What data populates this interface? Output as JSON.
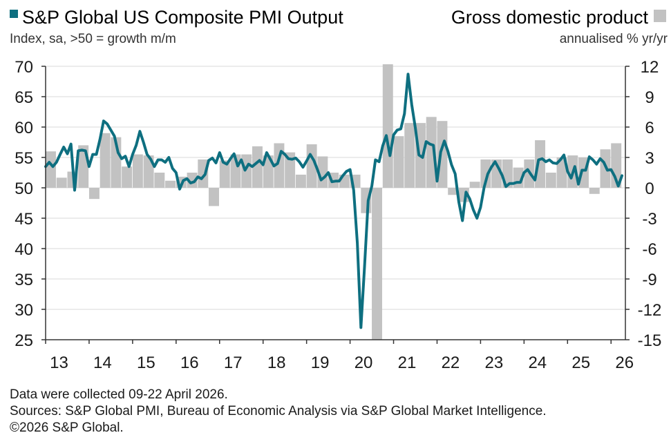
{
  "chart_data": {
    "type": "line",
    "legend": {
      "left_series": "S&P Global US Composite PMI Output",
      "left_unit": "Index, sa, >50 = growth m/m",
      "right_series": "Gross domestic product",
      "right_unit": "annualised % yr/yr"
    },
    "colors": {
      "pmi": "#0e6f80",
      "gdp": "#c2c2c2",
      "axis": "#333333"
    },
    "x_ticks": [
      "13",
      "14",
      "15",
      "16",
      "17",
      "18",
      "19",
      "20",
      "21",
      "22",
      "23",
      "24",
      "25",
      "26"
    ],
    "y_left": {
      "min": 25,
      "max": 70,
      "ticks": [
        "70",
        "65",
        "60",
        "55",
        "50",
        "45",
        "40",
        "35",
        "30",
        "25"
      ]
    },
    "y_right": {
      "min": -15,
      "max": 12,
      "ticks": [
        "12",
        "9",
        "6",
        "3",
        "0",
        "-3",
        "-6",
        "-9",
        "-12",
        "-15"
      ]
    },
    "series": [
      {
        "name": "S&P Global US Composite PMI Output",
        "axis": "left",
        "x": [
          2013.0,
          2013.083,
          2013.167,
          2013.25,
          2013.333,
          2013.417,
          2013.5,
          2013.583,
          2013.667,
          2013.75,
          2013.833,
          2013.917,
          2014.0,
          2014.083,
          2014.167,
          2014.25,
          2014.333,
          2014.417,
          2014.5,
          2014.583,
          2014.667,
          2014.75,
          2014.833,
          2014.917,
          2015.0,
          2015.083,
          2015.167,
          2015.25,
          2015.333,
          2015.417,
          2015.5,
          2015.583,
          2015.667,
          2015.75,
          2015.833,
          2015.917,
          2016.0,
          2016.083,
          2016.167,
          2016.25,
          2016.333,
          2016.417,
          2016.5,
          2016.583,
          2016.667,
          2016.75,
          2016.833,
          2016.917,
          2017.0,
          2017.083,
          2017.167,
          2017.25,
          2017.333,
          2017.417,
          2017.5,
          2017.583,
          2017.667,
          2017.75,
          2017.833,
          2017.917,
          2018.0,
          2018.083,
          2018.167,
          2018.25,
          2018.333,
          2018.417,
          2018.5,
          2018.583,
          2018.667,
          2018.75,
          2018.833,
          2018.917,
          2019.0,
          2019.083,
          2019.167,
          2019.25,
          2019.333,
          2019.417,
          2019.5,
          2019.583,
          2019.667,
          2019.75,
          2019.833,
          2019.917,
          2020.0,
          2020.083,
          2020.167,
          2020.25,
          2020.333,
          2020.417,
          2020.5,
          2020.583,
          2020.667,
          2020.75,
          2020.833,
          2020.917,
          2021.0,
          2021.083,
          2021.167,
          2021.25,
          2021.333,
          2021.417,
          2021.5,
          2021.583,
          2021.667,
          2021.75,
          2021.833,
          2021.917,
          2022.0,
          2022.083,
          2022.167,
          2022.25,
          2022.333,
          2022.417,
          2022.5,
          2022.583,
          2022.667,
          2022.75,
          2022.833,
          2022.917,
          2023.0,
          2023.083,
          2023.167,
          2023.25,
          2023.333,
          2023.417,
          2023.5,
          2023.583,
          2023.667,
          2023.75,
          2023.833,
          2023.917,
          2024.0,
          2024.083,
          2024.167,
          2024.25,
          2024.333,
          2024.417,
          2024.5,
          2024.583,
          2024.667,
          2024.75,
          2024.833,
          2024.917,
          2025.0,
          2025.083,
          2025.167,
          2025.25,
          2025.333,
          2025.417,
          2025.5,
          2025.583,
          2025.667,
          2025.75,
          2025.833,
          2025.917,
          2026.0,
          2026.083,
          2026.167,
          2026.25
        ],
        "values": [
          53.5,
          54.2,
          53.5,
          54.2,
          55.5,
          56.7,
          55.6,
          57.2,
          49.6,
          56.1,
          56.2,
          56.1,
          53.5,
          55.5,
          55.5,
          58.0,
          61.0,
          60.5,
          59.5,
          58.5,
          55.8,
          54.8,
          55.2,
          53.5,
          55.5,
          57.0,
          59.3,
          57.5,
          55.5,
          54.7,
          53.5,
          54.6,
          54.6,
          54.2,
          55.0,
          53.2,
          52.5,
          49.8,
          51.2,
          51.5,
          50.8,
          51.0,
          51.8,
          51.5,
          52.2,
          54.5,
          54.9,
          54.1,
          55.8,
          54.2,
          53.9,
          54.8,
          55.6,
          53.6,
          54.6,
          52.9,
          53.9,
          53.5,
          54.0,
          54.5,
          53.8,
          55.8,
          54.7,
          53.6,
          54.0,
          56.0,
          55.5,
          54.8,
          54.7,
          54.9,
          54.3,
          53.4,
          54.4,
          55.5,
          54.5,
          53.0,
          51.3,
          51.8,
          52.5,
          51.0,
          51.1,
          51.1,
          52.0,
          52.7,
          53.0,
          49.6,
          40.9,
          27.0,
          37.0,
          47.9,
          50.3,
          54.6,
          54.3,
          56.9,
          58.6,
          55.3,
          58.7,
          59.5,
          59.7,
          62.2,
          68.7,
          63.7,
          59.9,
          55.4,
          55.0,
          57.6,
          57.2,
          57.0,
          51.1,
          55.9,
          57.7,
          56.0,
          53.8,
          52.3,
          47.7,
          44.6,
          49.3,
          48.2,
          46.4,
          45.0,
          46.8,
          50.1,
          52.3,
          53.4,
          54.3,
          53.2,
          52.0,
          50.2,
          50.7,
          50.7,
          50.9,
          50.9,
          52.5,
          53.0,
          52.1,
          51.3,
          54.6,
          54.8,
          54.3,
          54.6,
          54.1,
          54.0,
          54.6,
          55.4,
          52.7,
          51.6,
          53.5,
          50.6,
          52.9,
          52.9,
          55.1,
          54.6,
          53.9,
          54.8,
          54.2,
          52.9,
          53.0,
          51.9,
          50.3,
          52.0
        ]
      },
      {
        "name": "Gross domestic product",
        "axis": "right",
        "type": "bar",
        "x": [
          2013.0,
          2013.25,
          2013.5,
          2013.75,
          2014.0,
          2014.25,
          2014.5,
          2014.75,
          2015.0,
          2015.25,
          2015.5,
          2015.75,
          2016.0,
          2016.25,
          2016.5,
          2016.75,
          2017.0,
          2017.25,
          2017.5,
          2017.75,
          2018.0,
          2018.25,
          2018.5,
          2018.75,
          2019.0,
          2019.25,
          2019.5,
          2019.75,
          2020.0,
          2020.25,
          2020.5,
          2020.75,
          2021.0,
          2021.25,
          2021.5,
          2021.75,
          2022.0,
          2022.25,
          2022.5,
          2022.75,
          2023.0,
          2023.25,
          2023.5,
          2023.75,
          2024.0,
          2024.25,
          2024.5,
          2024.75,
          2025.0,
          2025.25,
          2025.5,
          2025.75,
          2026.0
        ],
        "values": [
          3.6,
          1.0,
          1.6,
          4.2,
          -1.1,
          5.4,
          5.0,
          2.1,
          3.3,
          3.2,
          1.5,
          0.7,
          1.1,
          1.5,
          2.8,
          -1.8,
          2.7,
          3.3,
          3.3,
          4.1,
          3.2,
          4.4,
          3.5,
          1.3,
          4.3,
          3.1,
          1.5,
          1.3,
          1.3,
          -2.5,
          -15.0,
          12.2,
          5.1,
          6.4,
          6.4,
          7.0,
          6.6,
          -0.7,
          -1.4,
          0.6,
          2.8,
          2.8,
          2.8,
          2.0,
          2.8,
          4.7,
          1.5,
          3.0,
          3.2,
          3.0,
          -0.6,
          3.8,
          4.4
        ]
      }
    ],
    "footer": {
      "note": "Data were collected 09-22 April 2026.",
      "sources": "Sources: S&P Global PMI, Bureau of Economic Analysis via S&P Global Market Intelligence.",
      "copyright": "©2026 S&P Global."
    }
  }
}
